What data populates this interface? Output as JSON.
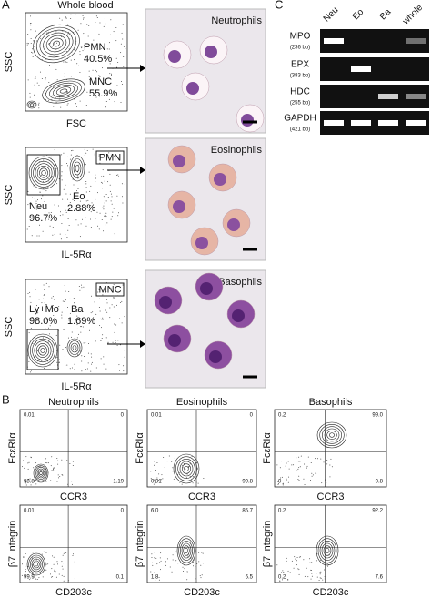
{
  "panel_labels": [
    "A",
    "B",
    "C"
  ],
  "panel_a": {
    "flow_plots": [
      {
        "title": "Whole blood",
        "x_label": "FSC",
        "y_label": "SSC",
        "gates": [
          {
            "name": "PMN",
            "percent": "40.5%"
          },
          {
            "name": "MNC",
            "percent": "55.9%"
          }
        ]
      },
      {
        "gate_box": "PMN",
        "x_label": "IL-5Rα",
        "y_label": "SSC",
        "gates": [
          {
            "name": "Neu",
            "percent": "96.7%"
          },
          {
            "name": "Eo",
            "percent": "2.88%"
          }
        ]
      },
      {
        "gate_box": "MNC",
        "x_label": "IL-5Rα",
        "y_label": "SSC",
        "gates": [
          {
            "name": "Ly+Mo",
            "percent": "98.0%"
          },
          {
            "name": "Ba",
            "percent": "1.69%"
          }
        ]
      }
    ],
    "micrographs": [
      "Neutrophils",
      "Eosinophils",
      "Basophils"
    ]
  },
  "panel_c": {
    "lanes": [
      "Neu",
      "Eo",
      "Ba",
      "whole"
    ],
    "genes": [
      {
        "name": "MPO",
        "size": "(236 bp)"
      },
      {
        "name": "EPX",
        "size": "(383 bp)"
      },
      {
        "name": "HDC",
        "size": "(255 bp)"
      },
      {
        "name": "GAPDH",
        "size": "(421 bp)"
      }
    ]
  },
  "panel_b": {
    "columns": [
      "Neutrophils",
      "Eosinophils",
      "Basophils"
    ],
    "rows": [
      {
        "x_label": "CCR3",
        "y_label": "FcεRIα",
        "quadrants": [
          [
            "0.01",
            "0",
            "98.8",
            "1.19"
          ],
          [
            "0.01",
            "0",
            "0.01",
            "99.8"
          ],
          [
            "0.2",
            "99.0",
            "0",
            "0.8"
          ]
        ]
      },
      {
        "x_label": "CD203c",
        "y_label": "β7 integrin",
        "quadrants": [
          [
            "0.01",
            "0",
            "99.9",
            "0.1"
          ],
          [
            "6.0",
            "85.7",
            "1.8",
            "6.5"
          ],
          [
            "0.2",
            "92.2",
            "0.2",
            "7.6"
          ]
        ]
      }
    ]
  }
}
